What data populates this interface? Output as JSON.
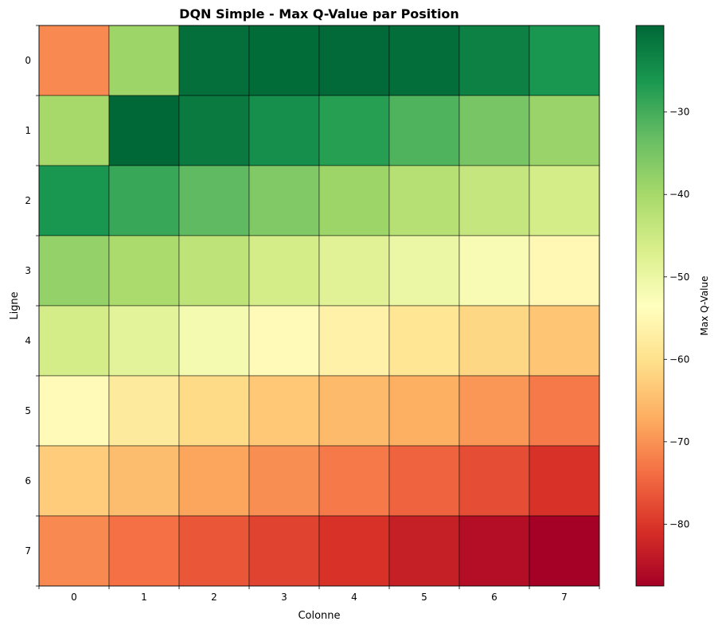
{
  "chart_data": {
    "type": "heatmap",
    "title": "DQN Simple - Max Q-Value par Position",
    "xlabel": "Colonne",
    "ylabel": "Ligne",
    "x_ticks": [
      "0",
      "1",
      "2",
      "3",
      "4",
      "5",
      "6",
      "7"
    ],
    "y_ticks": [
      "0",
      "1",
      "2",
      "3",
      "4",
      "5",
      "6",
      "7"
    ],
    "colormap": "RdYlGn",
    "colorbar_label": "Max Q-Value",
    "colorbar_range": [
      -87.5,
      -19.5
    ],
    "colorbar_ticks": [
      -30,
      -40,
      -50,
      -60,
      -70,
      -80
    ],
    "colorbar_tick_labels": [
      "−30",
      "−40",
      "−50",
      "−60",
      "−70",
      "−80"
    ],
    "values": [
      [
        -71.0,
        -39.0,
        -20.5,
        -20.0,
        -19.8,
        -20.3,
        -23.0,
        -26.0
      ],
      [
        -40.0,
        -19.5,
        -22.0,
        -25.0,
        -27.5,
        -31.0,
        -35.0,
        -38.5
      ],
      [
        -26.0,
        -29.0,
        -32.5,
        -36.0,
        -39.0,
        -42.0,
        -44.0,
        -46.0
      ],
      [
        -38.0,
        -40.5,
        -43.0,
        -46.0,
        -48.0,
        -50.0,
        -52.0,
        -55.0
      ],
      [
        -46.0,
        -48.5,
        -51.5,
        -54.5,
        -56.5,
        -59.0,
        -61.5,
        -64.0
      ],
      [
        -54.5,
        -58.0,
        -61.0,
        -63.5,
        -65.5,
        -67.0,
        -69.5,
        -72.5
      ],
      [
        -63.0,
        -65.0,
        -68.0,
        -70.5,
        -72.5,
        -75.0,
        -77.5,
        -80.5
      ],
      [
        -71.0,
        -73.5,
        -76.5,
        -78.5,
        -80.5,
        -83.0,
        -85.5,
        -87.5
      ]
    ]
  }
}
